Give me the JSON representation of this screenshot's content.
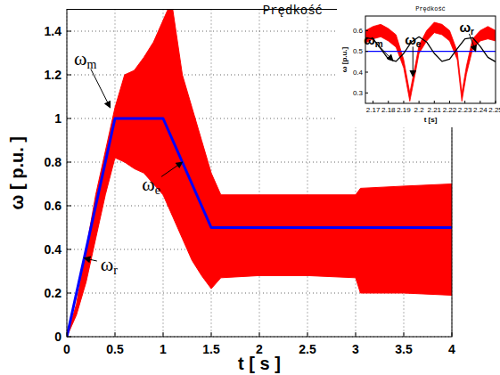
{
  "chart_data": [
    {
      "type": "line",
      "title": "Prędkość",
      "x_label": "t [ s ]",
      "y_label": "ω [ p.u. ]",
      "xlim": [
        0,
        4
      ],
      "xticks": [
        0,
        0.5,
        1,
        1.5,
        2,
        2.5,
        3,
        3.5,
        4
      ],
      "ylim": [
        0,
        1.5
      ],
      "yticks": [
        0,
        0.2,
        0.4,
        0.6,
        0.8,
        1,
        1.2,
        1.4
      ],
      "grid": true,
      "series": [
        {
          "type": "band",
          "color": "#ff0000",
          "x": [
            0,
            0.1,
            0.2,
            0.3,
            0.4,
            0.5,
            0.6,
            0.7,
            0.8,
            0.9,
            1.0,
            1.05,
            1.1,
            1.2,
            1.3,
            1.4,
            1.5,
            1.6,
            2.0,
            2.5,
            3.0,
            3.05,
            3.5,
            4.0
          ],
          "values": [
            0,
            0.15,
            0.4,
            0.65,
            0.85,
            1.05,
            1.2,
            1.22,
            1.28,
            1.35,
            1.45,
            1.5,
            1.5,
            1.2,
            1.05,
            0.9,
            0.75,
            0.65,
            0.65,
            0.65,
            0.65,
            0.68,
            0.69,
            0.7
          ],
          "low": [
            0,
            0.1,
            0.25,
            0.45,
            0.65,
            0.82,
            0.8,
            0.77,
            0.75,
            0.7,
            0.65,
            0.6,
            0.55,
            0.45,
            0.35,
            0.28,
            0.22,
            0.27,
            0.28,
            0.28,
            0.27,
            0.2,
            0.2,
            0.19
          ]
        },
        {
          "type": "line",
          "color": "#0000ff",
          "x": [
            0,
            0.5,
            1.0,
            1.5,
            4.0
          ],
          "values": [
            0,
            1,
            1,
            0.5,
            0.5
          ]
        }
      ],
      "annotations": [
        {
          "text": "ω",
          "sub": "m",
          "x": 0.45,
          "y": 1.05
        },
        {
          "text": "ω",
          "sub": "e",
          "x": 1.2,
          "y": 0.8
        },
        {
          "text": "ω",
          "sub": "r",
          "x": 0.18,
          "y": 0.36
        }
      ]
    },
    {
      "type": "line",
      "title": "Prędkość",
      "x_label": "t [s]",
      "y_label": "ω [p.u.]",
      "xlim": [
        2.165,
        2.25
      ],
      "xticks": [
        2.17,
        2.18,
        2.19,
        2.2,
        2.21,
        2.22,
        2.23,
        2.24,
        2.25
      ],
      "ylim": [
        0.25,
        0.67
      ],
      "yticks": [
        0.3,
        0.4,
        0.5,
        0.6
      ],
      "grid": false,
      "series": [
        {
          "type": "band",
          "color": "#ff0000",
          "x": [
            2.165,
            2.17,
            2.175,
            2.18,
            2.185,
            2.19,
            2.194,
            2.198,
            2.2,
            2.205,
            2.21,
            2.215,
            2.22,
            2.225,
            2.228,
            2.231,
            2.235,
            2.24,
            2.245,
            2.25
          ],
          "values": [
            0.6,
            0.62,
            0.63,
            0.61,
            0.58,
            0.46,
            0.3,
            0.45,
            0.53,
            0.6,
            0.64,
            0.63,
            0.6,
            0.5,
            0.3,
            0.43,
            0.56,
            0.6,
            0.62,
            0.6
          ],
          "low": [
            0.54,
            0.56,
            0.57,
            0.55,
            0.52,
            0.42,
            0.26,
            0.41,
            0.49,
            0.55,
            0.59,
            0.58,
            0.55,
            0.46,
            0.26,
            0.39,
            0.51,
            0.55,
            0.56,
            0.55
          ]
        },
        {
          "type": "line",
          "color": "#0000ff",
          "x": [
            2.165,
            2.25
          ],
          "values": [
            0.5,
            0.5
          ]
        },
        {
          "type": "line",
          "color": "#000000",
          "x": [
            2.165,
            2.17,
            2.175,
            2.18,
            2.185,
            2.19,
            2.195,
            2.2,
            2.205,
            2.21,
            2.215,
            2.22,
            2.225,
            2.23,
            2.235,
            2.24,
            2.245,
            2.25
          ],
          "values": [
            0.566,
            0.56,
            0.513,
            0.463,
            0.452,
            0.49,
            0.545,
            0.57,
            0.545,
            0.49,
            0.452,
            0.463,
            0.513,
            0.56,
            0.566,
            0.524,
            0.471,
            0.45
          ]
        }
      ],
      "annotations": [
        {
          "text": "ω",
          "sub": "m",
          "x": 2.183,
          "y": 0.455
        },
        {
          "text": "ω",
          "sub": "e",
          "x": 2.196,
          "y": 0.38
        },
        {
          "text": "ω",
          "sub": "r",
          "x": 2.237,
          "y": 0.5
        }
      ]
    }
  ]
}
